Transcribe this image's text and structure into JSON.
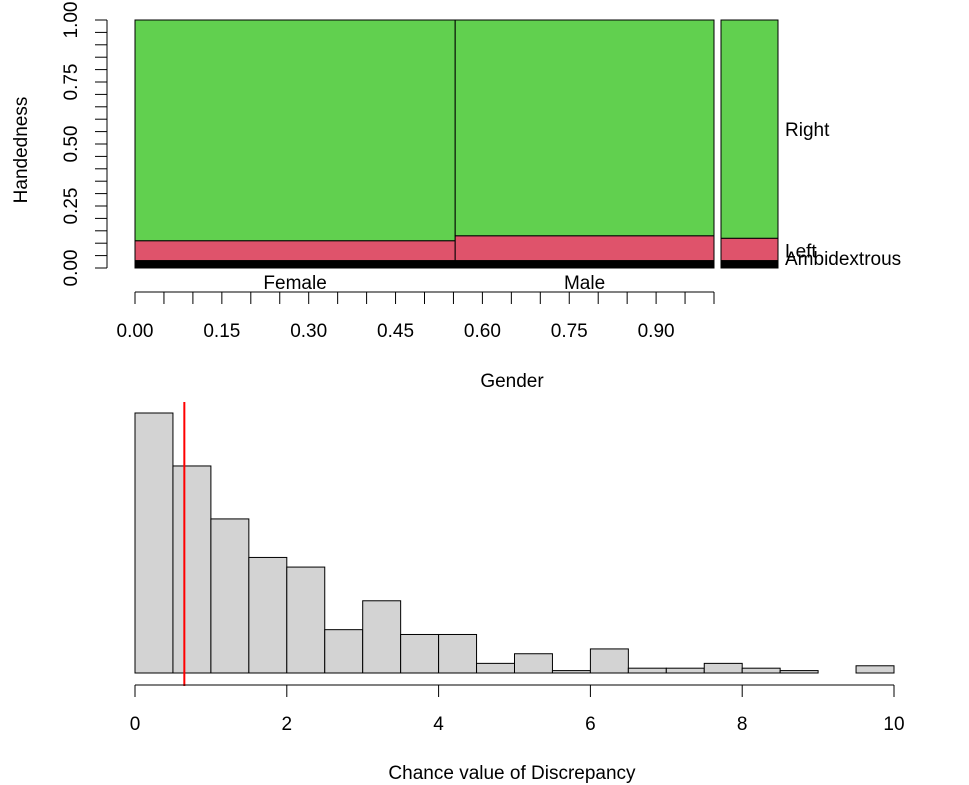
{
  "chart_data": [
    {
      "type": "mosaic",
      "xlabel": "Gender",
      "ylabel": "Handedness",
      "x_ticks": [
        "0.00",
        "0.15",
        "0.30",
        "0.45",
        "0.60",
        "0.75",
        "0.90"
      ],
      "x_tick_values": [
        0.0,
        0.15,
        0.3,
        0.45,
        0.6,
        0.75,
        0.9
      ],
      "y_ticks": [
        "0.00",
        "0.25",
        "0.50",
        "0.75",
        "1.00"
      ],
      "y_tick_values": [
        0.0,
        0.25,
        0.5,
        0.75,
        1.0
      ],
      "columns": [
        {
          "name": "Female",
          "width": 0.553,
          "segments": {
            "Ambidextrous": 0.03,
            "Left": 0.08,
            "Right": 0.89
          }
        },
        {
          "name": "Male",
          "width": 0.447,
          "segments": {
            "Ambidextrous": 0.03,
            "Left": 0.1,
            "Right": 0.87
          }
        }
      ],
      "marginal": {
        "Ambidextrous": 0.03,
        "Left": 0.09,
        "Right": 0.88
      },
      "categories": [
        "Ambidextrous",
        "Left",
        "Right"
      ],
      "colors": {
        "Ambidextrous": "#000000",
        "Left": "#DF536B",
        "Right": "#61D04F"
      }
    },
    {
      "type": "histogram",
      "xlabel": "Chance value of Discrepancy",
      "xlim": [
        0,
        10
      ],
      "x_ticks": [
        "0",
        "2",
        "4",
        "6",
        "8",
        "10"
      ],
      "x_tick_values": [
        0,
        2,
        4,
        6,
        8,
        10
      ],
      "bin_width": 0.5,
      "bin_start": 0,
      "counts": [
        54,
        43,
        32,
        24,
        22,
        9,
        15,
        8,
        8,
        2,
        4,
        0.5,
        5,
        1,
        1,
        2,
        1,
        0.5,
        0,
        1.5
      ],
      "count_max": 54,
      "observed_value": 0.65,
      "observed_color": "#FF0000",
      "bar_color": "#D3D3D3"
    }
  ]
}
